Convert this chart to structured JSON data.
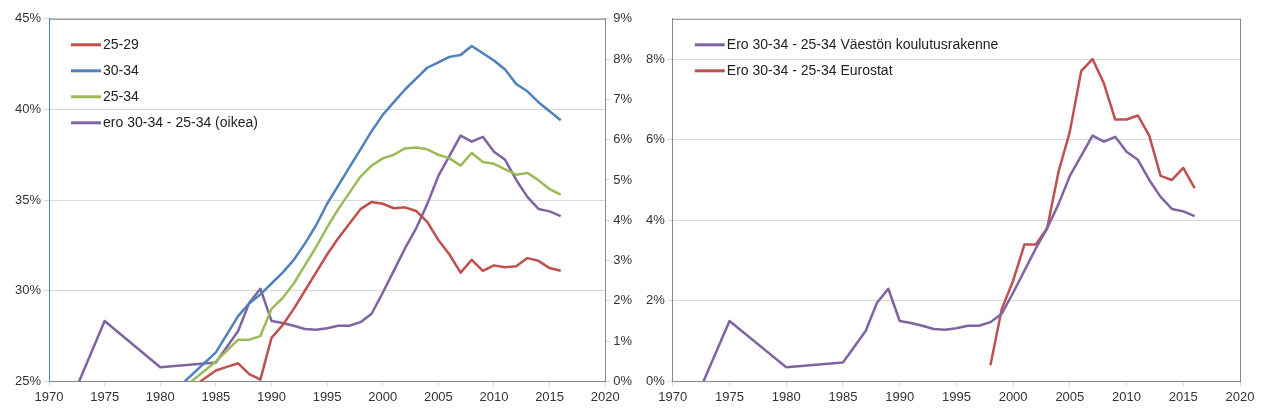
{
  "chart_data": [
    {
      "type": "line",
      "xlim": [
        1970,
        2020
      ],
      "xticks": [
        1970,
        1975,
        1980,
        1985,
        1990,
        1995,
        2000,
        2005,
        2010,
        2015,
        2020
      ],
      "ylim": [
        25,
        45
      ],
      "yticks": [
        {
          "value": 25,
          "label": "25%"
        },
        {
          "value": 30,
          "label": "30%"
        },
        {
          "value": 35,
          "label": "35%"
        },
        {
          "value": 40,
          "label": "40%"
        },
        {
          "value": 45,
          "label": "45%"
        }
      ],
      "y2lim": [
        0,
        9
      ],
      "y2ticks": [
        {
          "value": 0,
          "label": "0%"
        },
        {
          "value": 1,
          "label": "1%"
        },
        {
          "value": 2,
          "label": "2%"
        },
        {
          "value": 3,
          "label": "3%"
        },
        {
          "value": 4,
          "label": "4%"
        },
        {
          "value": 5,
          "label": "5%"
        },
        {
          "value": 6,
          "label": "6%"
        },
        {
          "value": 7,
          "label": "7%"
        },
        {
          "value": 8,
          "label": "8%"
        },
        {
          "value": 9,
          "label": "9%"
        }
      ],
      "grid": "y",
      "legend": "top left",
      "series": [
        {
          "name": "25-29",
          "color": "#c0504d",
          "x": [
            1983.6,
            1985,
            1986,
            1987,
            1988,
            1989,
            1990,
            1991,
            1992,
            1993,
            1994,
            1995,
            1996,
            1997,
            1998,
            1999,
            2000,
            2001,
            2002,
            2003,
            2004,
            2005,
            2006,
            2007,
            2008,
            2009,
            2010,
            2011,
            2012,
            2013,
            2014,
            2015,
            2016
          ],
          "values": [
            25,
            25.6,
            25.8,
            26.0,
            25.4,
            25.1,
            27.4,
            28.1,
            29.0,
            30.0,
            31.0,
            32.0,
            32.9,
            33.7,
            34.5,
            34.9,
            34.8,
            34.55,
            34.6,
            34.4,
            33.8,
            32.8,
            32.0,
            31.0,
            31.7,
            31.1,
            31.4,
            31.3,
            31.35,
            31.8,
            31.65,
            31.25,
            31.1
          ]
        },
        {
          "name": "30-34",
          "color": "#4f81bd",
          "x": [
            1982.2,
            1985,
            1987,
            1988,
            1989,
            1990,
            1991,
            1992,
            1993,
            1994,
            1995,
            1996,
            1997,
            1998,
            1999,
            2000,
            2001,
            2002,
            2003,
            2004,
            2005,
            2006,
            2007,
            2008,
            2009,
            2010,
            2011,
            2012,
            2013,
            2014,
            2015,
            2016
          ],
          "values": [
            25,
            26.6,
            28.6,
            29.3,
            29.8,
            30.4,
            31.0,
            31.7,
            32.6,
            33.6,
            34.8,
            35.8,
            36.8,
            37.8,
            38.8,
            39.7,
            40.4,
            41.1,
            41.7,
            42.3,
            42.6,
            42.9,
            43.0,
            43.5,
            43.1,
            42.7,
            42.2,
            41.4,
            41.0,
            40.4,
            39.9,
            39.4
          ]
        },
        {
          "name": "25-34",
          "color": "#9bbb59",
          "x": [
            1982.8,
            1985,
            1986,
            1987,
            1988,
            1989,
            1990,
            1991,
            1992,
            1993,
            1994,
            1995,
            1996,
            1997,
            1998,
            1999,
            2000,
            2001,
            2002,
            2003,
            2004,
            2005,
            2006,
            2007,
            2008,
            2009,
            2010,
            2011,
            2012,
            2013,
            2014,
            2015,
            2016
          ],
          "values": [
            25,
            26.1,
            26.7,
            27.3,
            27.3,
            27.5,
            29.0,
            29.6,
            30.4,
            31.4,
            32.4,
            33.5,
            34.5,
            35.4,
            36.3,
            36.9,
            37.3,
            37.5,
            37.85,
            37.9,
            37.8,
            37.5,
            37.3,
            36.9,
            37.6,
            37.1,
            37.0,
            36.7,
            36.4,
            36.5,
            36.1,
            35.6,
            35.3
          ]
        },
        {
          "name": "ero 30-34 - 25-34 (oikea)",
          "color": "#8064a2",
          "axis": "y2",
          "x": [
            1972.7,
            1975,
            1980,
            1985,
            1987,
            1988,
            1989,
            1990,
            1991,
            1992,
            1993,
            1994,
            1995,
            1996,
            1997,
            1998,
            1999,
            2000,
            2001,
            2002,
            2003,
            2004,
            2005,
            2006,
            2007,
            2008,
            2009,
            2010,
            2011,
            2012,
            2013,
            2014,
            2015,
            2016
          ],
          "values": [
            0,
            1.5,
            0.35,
            0.47,
            1.25,
            1.95,
            2.3,
            1.5,
            1.45,
            1.38,
            1.3,
            1.28,
            1.32,
            1.38,
            1.38,
            1.47,
            1.68,
            2.2,
            2.75,
            3.3,
            3.8,
            4.4,
            5.1,
            5.6,
            6.1,
            5.95,
            6.07,
            5.7,
            5.5,
            5.0,
            4.58,
            4.28,
            4.22,
            4.1
          ]
        }
      ]
    },
    {
      "type": "line",
      "xlim": [
        1970,
        2020
      ],
      "xticks": [
        1970,
        1975,
        1980,
        1985,
        1990,
        1995,
        2000,
        2005,
        2010,
        2015,
        2020
      ],
      "ylim": [
        0,
        9
      ],
      "yticks": [
        {
          "value": 0,
          "label": "0%"
        },
        {
          "value": 2,
          "label": "2%"
        },
        {
          "value": 4,
          "label": "4%"
        },
        {
          "value": 6,
          "label": "6%"
        },
        {
          "value": 8,
          "label": "8%"
        }
      ],
      "grid": "y",
      "legend": "top left",
      "series": [
        {
          "name": "Ero 30-34 - 25-34 Väestön koulutusrakenne",
          "color": "#8064a2",
          "x": [
            1972.7,
            1975,
            1980,
            1985,
            1987,
            1988,
            1989,
            1990,
            1991,
            1992,
            1993,
            1994,
            1995,
            1996,
            1997,
            1998,
            1999,
            2000,
            2001,
            2002,
            2003,
            2004,
            2005,
            2006,
            2007,
            2008,
            2009,
            2010,
            2011,
            2012,
            2013,
            2014,
            2015,
            2016
          ],
          "values": [
            0,
            1.5,
            0.35,
            0.47,
            1.25,
            1.95,
            2.3,
            1.5,
            1.45,
            1.38,
            1.3,
            1.28,
            1.32,
            1.38,
            1.38,
            1.47,
            1.68,
            2.2,
            2.75,
            3.3,
            3.8,
            4.4,
            5.1,
            5.6,
            6.1,
            5.95,
            6.07,
            5.7,
            5.5,
            5.0,
            4.58,
            4.28,
            4.22,
            4.1
          ]
        },
        {
          "name": "Ero 30-34 - 25-34 Eurostat",
          "color": "#c0504d",
          "x": [
            1998,
            1999,
            2000,
            2001,
            2002,
            2003,
            2004,
            2005,
            2006,
            2007,
            2008,
            2009,
            2010,
            2011,
            2012,
            2013,
            2014,
            2015,
            2016
          ],
          "values": [
            0.4,
            1.8,
            2.5,
            3.4,
            3.4,
            3.8,
            5.2,
            6.2,
            7.7,
            8.0,
            7.4,
            6.5,
            6.5,
            6.6,
            6.1,
            5.1,
            5.0,
            5.3,
            4.8
          ]
        }
      ]
    }
  ]
}
